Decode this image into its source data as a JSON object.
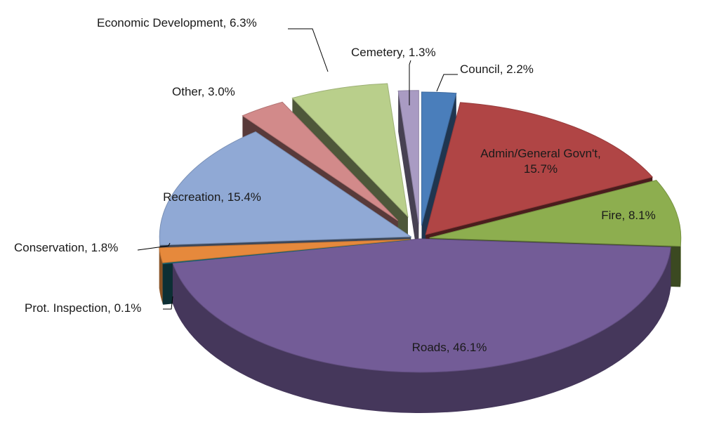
{
  "chart_data": {
    "type": "pie",
    "title": "",
    "slices": [
      {
        "label": "Council",
        "value": 2.2,
        "display": "Council, 2.2%",
        "color": "#4a7ebb"
      },
      {
        "label": "Admin/General Govn't",
        "value": 15.7,
        "display": "Admin/General Govn't,|15.7%",
        "color": "#b04545"
      },
      {
        "label": "Fire",
        "value": 8.1,
        "display": "Fire, 8.1%",
        "color": "#8dae4f"
      },
      {
        "label": "Roads",
        "value": 46.1,
        "display": "Roads, 46.1%",
        "color": "#735c97"
      },
      {
        "label": "Prot. Inspection",
        "value": 0.1,
        "display": "Prot. Inspection, 0.1%",
        "color": "#1d6f7c"
      },
      {
        "label": "Conservation",
        "value": 1.8,
        "display": "Conservation, 1.8%",
        "color": "#e6893c"
      },
      {
        "label": "Recreation",
        "value": 15.4,
        "display": "Recreation, 15.4%",
        "color": "#90a9d5"
      },
      {
        "label": "Other",
        "value": 3.0,
        "display": "Other, 3.0%",
        "color": "#d28a8a"
      },
      {
        "label": "Economic Development",
        "value": 6.3,
        "display": "Economic Development, 6.3%",
        "color": "#b9cf8b"
      },
      {
        "label": "Cemetery",
        "value": 1.3,
        "display": "Cemetery, 1.3%",
        "color": "#a99bc3"
      }
    ]
  }
}
